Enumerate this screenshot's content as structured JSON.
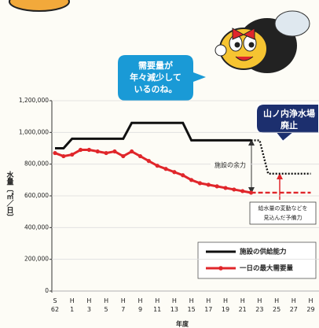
{
  "chart_data": {
    "type": "line",
    "y_label": "水量〔㎥／日〕",
    "x_label": "年度",
    "categories": [
      "S62",
      null,
      "H1",
      null,
      "H3",
      null,
      "H5",
      null,
      "H7",
      null,
      "H9",
      null,
      "H11",
      null,
      "H13",
      null,
      "H15",
      null,
      "H17",
      null,
      "H19",
      null,
      "H21",
      null,
      "H23",
      null,
      "H25",
      null,
      "H27",
      null,
      "H29"
    ],
    "series": [
      {
        "name": "施設の供給能力",
        "color": "#111111",
        "style": "solid",
        "markers": false,
        "values": [
          900000,
          900000,
          960000,
          960000,
          960000,
          960000,
          960000,
          960000,
          960000,
          1060000,
          1060000,
          1060000,
          1060000,
          1060000,
          1060000,
          1060000,
          950000,
          950000,
          950000,
          950000,
          950000,
          950000,
          950000,
          950000,
          null,
          null,
          null,
          null,
          null,
          null,
          null
        ]
      },
      {
        "color": "#111111",
        "style": "dotted",
        "markers": false,
        "values": [
          null,
          null,
          null,
          null,
          null,
          null,
          null,
          null,
          null,
          null,
          null,
          null,
          null,
          null,
          null,
          null,
          null,
          null,
          null,
          null,
          null,
          null,
          null,
          950000,
          950000,
          740000,
          740000,
          740000,
          740000,
          740000,
          740000
        ]
      },
      {
        "name": "一日の最大需要量",
        "color": "#e0262b",
        "style": "solid",
        "markers": true,
        "values": [
          870000,
          850000,
          860000,
          890000,
          890000,
          880000,
          870000,
          880000,
          850000,
          880000,
          850000,
          820000,
          790000,
          770000,
          750000,
          730000,
          700000,
          680000,
          670000,
          660000,
          650000,
          640000,
          630000,
          620000,
          null,
          null,
          null,
          null,
          null,
          null,
          null
        ]
      },
      {
        "color": "#e0262b",
        "style": "dashed",
        "markers": false,
        "values": [
          null,
          null,
          null,
          null,
          null,
          null,
          null,
          null,
          null,
          null,
          null,
          null,
          null,
          null,
          null,
          null,
          null,
          null,
          null,
          null,
          null,
          null,
          null,
          620000,
          620000,
          620000,
          620000,
          620000,
          620000,
          620000,
          620000
        ]
      }
    ],
    "ylim": [
      0,
      1200000
    ],
    "yticks": [
      0,
      {
        "value": 200000,
        "label": "200,000"
      },
      {
        "value": 400000,
        "label": "400,000"
      },
      {
        "value": 600000,
        "label": "600,000"
      },
      {
        "value": 800000,
        "label": "800,000"
      },
      {
        "value": 1000000,
        "label": "1,000,000"
      },
      {
        "value": 1200000,
        "label": "1,200,000"
      }
    ],
    "grid": true,
    "legend": "lower right",
    "annotations": {
      "bubble": [
        "需要量が",
        "年々減少して",
        "いるのね。"
      ],
      "closure": [
        "山ノ内浄水場",
        "廃止"
      ],
      "margin": "施設の余力",
      "reserve": [
        "給水量の変動などを",
        "見込んだ予備力"
      ]
    }
  }
}
